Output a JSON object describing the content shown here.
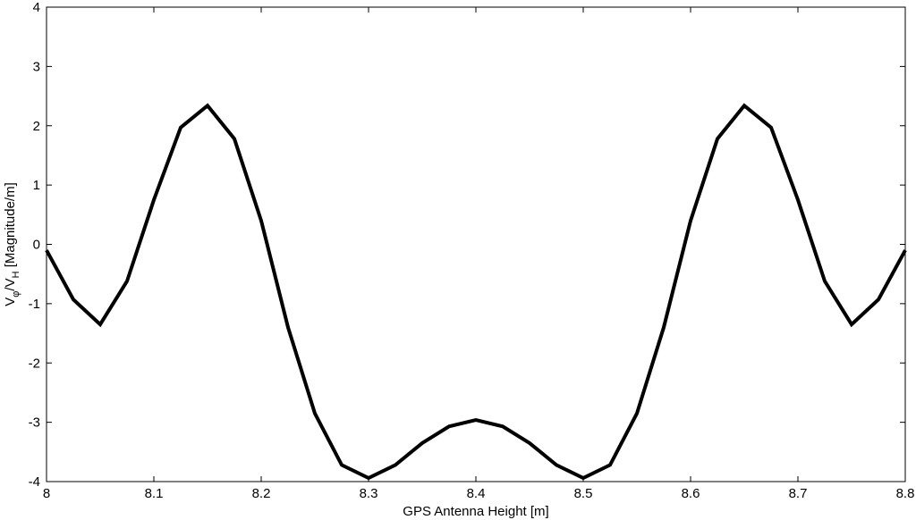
{
  "chart_data": {
    "type": "line",
    "title": "",
    "xlabel": "GPS Antenna Height [m]",
    "ylabel_parts": {
      "v1": "V",
      "sub1": "φ",
      "slash": "/V",
      "sub2": "H",
      "rest": " [Magnitude/m]"
    },
    "xlim": [
      8.0,
      8.8
    ],
    "ylim": [
      -4,
      4
    ],
    "xticks": [
      "8",
      "8.1",
      "8.2",
      "8.3",
      "8.4",
      "8.5",
      "8.6",
      "8.7",
      "8.8"
    ],
    "yticks": [
      "4",
      "3",
      "2",
      "1",
      "0",
      "-1",
      "-2",
      "-3",
      "-4"
    ],
    "grid": false,
    "line_color": "#000000",
    "series": [
      {
        "x": [
          8.0,
          8.025,
          8.05,
          8.075,
          8.1,
          8.125,
          8.15,
          8.175,
          8.2,
          8.225,
          8.25,
          8.275,
          8.3,
          8.325,
          8.35,
          8.375,
          8.4,
          8.425,
          8.45,
          8.475,
          8.5,
          8.525,
          8.55,
          8.575,
          8.6,
          8.625,
          8.65,
          8.675,
          8.7,
          8.725,
          8.75,
          8.775,
          8.8
        ],
        "y": [
          -0.1,
          -0.93,
          -1.35,
          -0.62,
          0.75,
          1.97,
          2.34,
          1.78,
          0.4,
          -1.4,
          -2.85,
          -3.72,
          -3.94,
          -3.72,
          -3.35,
          -3.07,
          -2.96,
          -3.07,
          -3.35,
          -3.72,
          -3.94,
          -3.72,
          -2.85,
          -1.4,
          0.4,
          1.78,
          2.34,
          1.97,
          0.75,
          -0.62,
          -1.35,
          -0.93,
          -0.1
        ]
      }
    ]
  }
}
